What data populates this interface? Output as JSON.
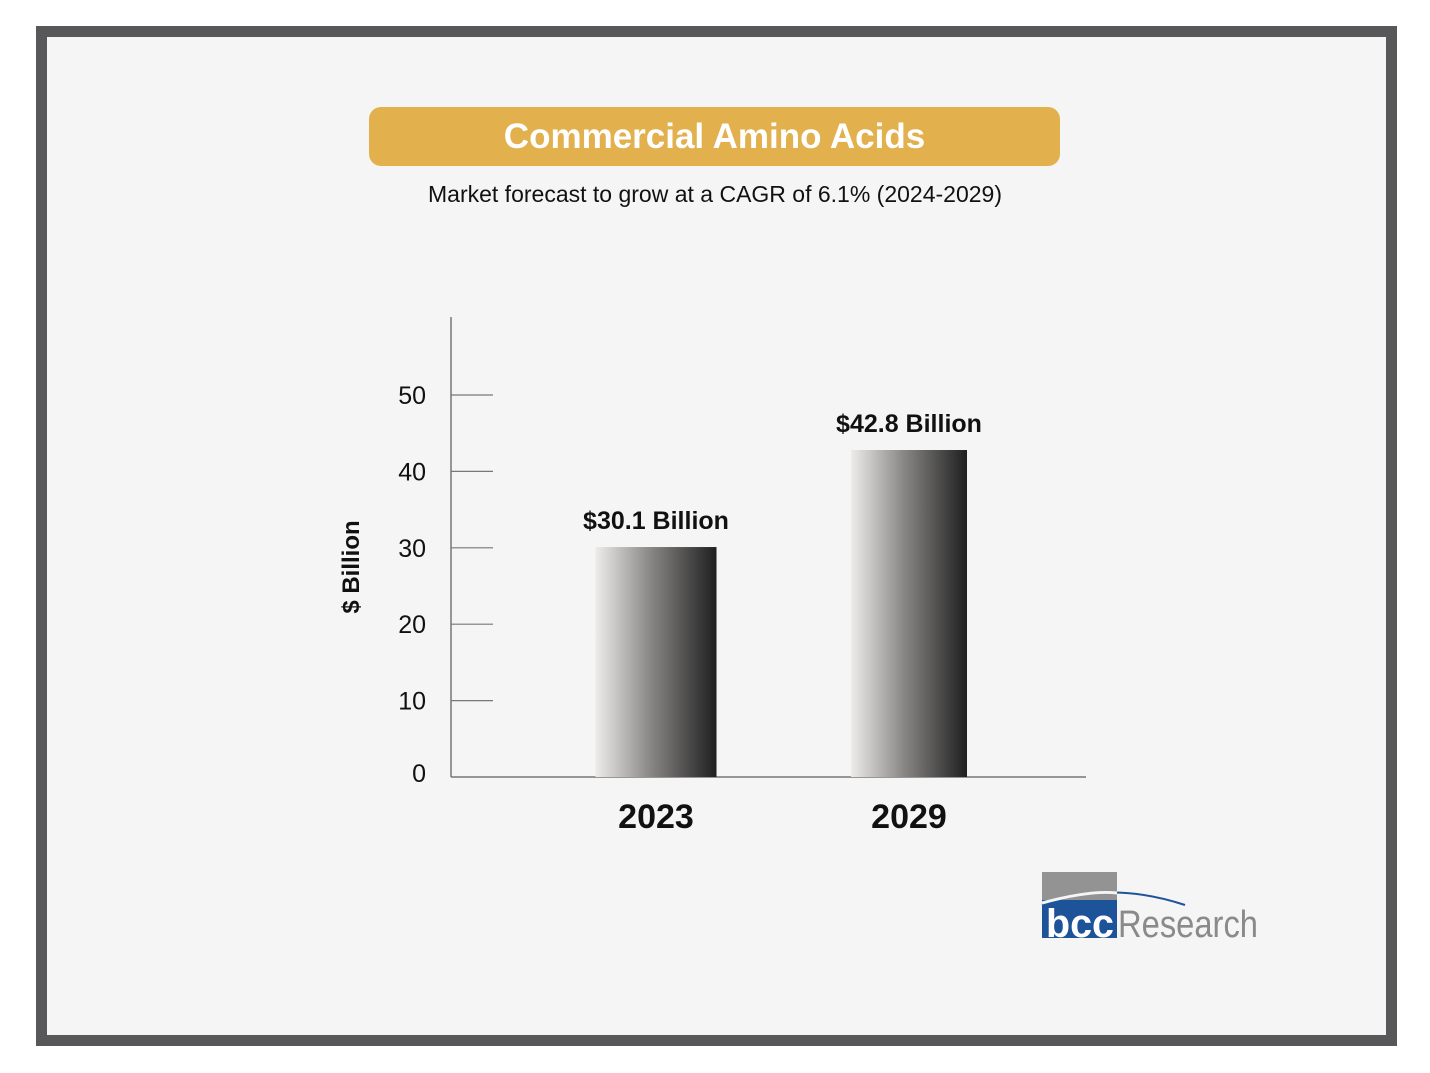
{
  "chart_data": {
    "type": "bar",
    "title": "Commercial Amino Acids",
    "subtitle": "Market forecast to grow at a CAGR of 6.1% (2024-2029)",
    "categories": [
      "2023",
      "2029"
    ],
    "values": [
      30.1,
      42.8
    ],
    "data_labels": [
      "$30.1 Billion",
      "$42.8 Billion"
    ],
    "xlabel": "",
    "ylabel": "$ Billion",
    "ylim": [
      0,
      60
    ],
    "yticks": [
      0,
      10,
      20,
      30,
      40,
      50
    ],
    "grid": false,
    "colors": {
      "banner": "#e2b14e",
      "bar_light": "#eeeceb",
      "bar_dark": "#1f1f1f",
      "frame": "#58585a"
    }
  },
  "logo": {
    "text": "bccResearch"
  }
}
